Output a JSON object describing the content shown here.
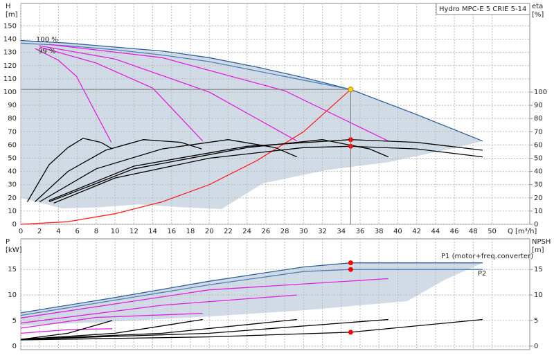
{
  "chart_data": [
    {
      "type": "line",
      "title": "Hydro MPC-E 5 CRIE 5-14",
      "ylabel": [
        "H",
        "[m]"
      ],
      "y2label": [
        "eta",
        "[%]"
      ],
      "xlabel": "Q [m³/h]",
      "xlim": [
        0,
        54
      ],
      "xticks": [
        0,
        2,
        4,
        6,
        8,
        10,
        12,
        14,
        16,
        18,
        20,
        22,
        24,
        26,
        28,
        30,
        32,
        34,
        36,
        38,
        40,
        42,
        44,
        46,
        48,
        50
      ],
      "ylim": [
        0,
        167
      ],
      "yticks": [
        0,
        10,
        20,
        30,
        40,
        50,
        60,
        70,
        80,
        90,
        100,
        110,
        120,
        130,
        140,
        150
      ],
      "y2lim": [
        0,
        167
      ],
      "y2ticks": [
        0,
        10,
        20,
        30,
        40,
        50,
        60,
        70,
        80,
        90,
        100
      ],
      "grid": true,
      "annotations": [
        "100 %",
        "99 %"
      ],
      "series": [
        {
          "fill": true,
          "color": "#cfd9e4",
          "x": [
            0,
            10,
            20,
            30,
            35,
            49,
            45.6,
            39,
            32.4,
            25.7,
            21.3,
            17,
            12.5,
            8.5,
            4.4,
            0
          ],
          "values": [
            139,
            134,
            126,
            111,
            102,
            63,
            57,
            47,
            41,
            31,
            11.5,
            13,
            15,
            13,
            12,
            20
          ]
        },
        {
          "color": "#2f5f9a",
          "x": [
            0,
            5,
            10,
            15,
            20,
            25,
            30,
            35,
            42,
            49
          ],
          "values": [
            139,
            137,
            134,
            131,
            126,
            119,
            111,
            102,
            83,
            63
          ]
        },
        {
          "color": "#4f7fb8",
          "x": [
            0,
            5,
            10,
            15,
            20,
            25,
            30,
            35
          ],
          "values": [
            137,
            135,
            132,
            128,
            123,
            116,
            109,
            102
          ]
        },
        {
          "color": "#e020e0",
          "x": [
            1.5,
            4,
            5.9,
            9.6
          ],
          "values": [
            133,
            124,
            112,
            62
          ]
        },
        {
          "color": "#e020e0",
          "x": [
            2,
            8,
            14,
            19.3
          ],
          "values": [
            134,
            122,
            103,
            63
          ]
        },
        {
          "color": "#e020e0",
          "x": [
            2,
            10,
            20,
            29.3
          ],
          "values": [
            135,
            125,
            100,
            63
          ]
        },
        {
          "color": "#e020e0",
          "x": [
            3,
            15,
            28,
            39
          ],
          "values": [
            136,
            126,
            101,
            63
          ]
        },
        {
          "color": "#ff2020",
          "x": [
            0,
            5,
            10,
            15,
            20,
            25,
            30,
            35
          ],
          "values": [
            0,
            2,
            8,
            17,
            30,
            48,
            70,
            102
          ]
        },
        {
          "color": "#000000",
          "x": [
            0.7,
            3,
            5,
            6.6,
            8.5,
            9.7
          ],
          "values": [
            17,
            45,
            58,
            65,
            62,
            57
          ]
        },
        {
          "color": "#000000",
          "x": [
            1.5,
            5,
            9,
            13,
            17,
            19.2
          ],
          "values": [
            17,
            40,
            56,
            64,
            62,
            57
          ]
        },
        {
          "color": "#000000",
          "x": [
            2,
            8,
            15,
            22,
            27,
            29.3
          ],
          "values": [
            17,
            42,
            57,
            64,
            58,
            51
          ]
        },
        {
          "color": "#000000",
          "x": [
            3,
            12,
            24,
            32,
            37,
            39
          ],
          "values": [
            17,
            42,
            58,
            64,
            57,
            51
          ]
        },
        {
          "color": "#000000",
          "x": [
            3.5,
            10,
            20,
            30,
            35,
            42,
            49
          ],
          "values": [
            16,
            35,
            50,
            58,
            59,
            57,
            51
          ]
        },
        {
          "color": "#000000",
          "x": [
            3,
            12,
            24,
            35,
            42,
            49
          ],
          "values": [
            18,
            44,
            59,
            64,
            62,
            56
          ]
        },
        {
          "color": "#ff0000",
          "marker": true,
          "axis": "y2",
          "x": [
            35,
            35
          ],
          "values": [
            64,
            59
          ]
        },
        {
          "color": "#ffd700",
          "marker": true,
          "guides": true,
          "x": [
            35
          ],
          "values": [
            102
          ]
        }
      ]
    },
    {
      "type": "line",
      "ylabel": [
        "P",
        "[kW]"
      ],
      "y2label": [
        "NPSH",
        "[m]"
      ],
      "xlim": [
        0,
        54
      ],
      "xticks": [
        0,
        2,
        4,
        6,
        8,
        10,
        12,
        14,
        16,
        18,
        20,
        22,
        24,
        26,
        28,
        30,
        32,
        34,
        36,
        38,
        40,
        42,
        44,
        46,
        48,
        50
      ],
      "ylim": [
        -0.7,
        21
      ],
      "yticks": [
        0,
        5,
        10,
        15
      ],
      "y2lim": [
        -0.7,
        21
      ],
      "y2ticks": [
        0,
        5,
        10,
        15
      ],
      "grid": true,
      "annotations": [
        "P1 (motor+freq.converter)",
        "P2"
      ],
      "series": [
        {
          "fill": true,
          "color": "#cfd9e4",
          "x": [
            0,
            10,
            20,
            30,
            35,
            49,
            45,
            41,
            30,
            20,
            10,
            0
          ],
          "values": [
            6.5,
            9.5,
            12.7,
            15.5,
            16.3,
            16.3,
            13,
            8.8,
            7,
            5.8,
            4.8,
            4
          ]
        },
        {
          "color": "#2f5f9a",
          "x": [
            0,
            10,
            20,
            30,
            35,
            49
          ],
          "values": [
            6.5,
            9.5,
            12.7,
            15.5,
            16.3,
            16.3
          ]
        },
        {
          "color": "#4f7fb8",
          "x": [
            0,
            10,
            20,
            30,
            35,
            49
          ],
          "values": [
            6,
            9,
            12,
            14.6,
            15,
            15
          ]
        },
        {
          "color": "#e020e0",
          "x": [
            0,
            5,
            9.7
          ],
          "values": [
            2.5,
            3.2,
            3.4
          ]
        },
        {
          "color": "#e020e0",
          "x": [
            0,
            8,
            19.3
          ],
          "values": [
            3.5,
            5.6,
            6.4
          ]
        },
        {
          "color": "#e020e0",
          "x": [
            0,
            15,
            29.3
          ],
          "values": [
            4.5,
            8,
            10
          ]
        },
        {
          "color": "#e020e0",
          "x": [
            0,
            20,
            39
          ],
          "values": [
            5.5,
            11,
            13.2
          ]
        },
        {
          "color": "#000000",
          "axis": "y2",
          "x": [
            0,
            5,
            9.7
          ],
          "values": [
            1.3,
            2.5,
            5
          ]
        },
        {
          "color": "#000000",
          "axis": "y2",
          "x": [
            0,
            10,
            19.3
          ],
          "values": [
            1.3,
            2.5,
            5.2
          ]
        },
        {
          "color": "#000000",
          "axis": "y2",
          "x": [
            0,
            15,
            29.3
          ],
          "values": [
            1.3,
            2.5,
            5.2
          ]
        },
        {
          "color": "#000000",
          "axis": "y2",
          "x": [
            0,
            20,
            39
          ],
          "values": [
            1.3,
            2.5,
            5.2
          ]
        },
        {
          "color": "#000000",
          "axis": "y2",
          "x": [
            0,
            20,
            35,
            49
          ],
          "values": [
            1.2,
            1.8,
            2.7,
            5.2
          ]
        },
        {
          "color": "#ff0000",
          "marker": true,
          "x": [
            35,
            35
          ],
          "values": [
            16.3,
            15
          ]
        },
        {
          "color": "#ff0000",
          "marker": true,
          "axis": "y2",
          "x": [
            35
          ],
          "values": [
            2.7
          ]
        }
      ]
    }
  ]
}
